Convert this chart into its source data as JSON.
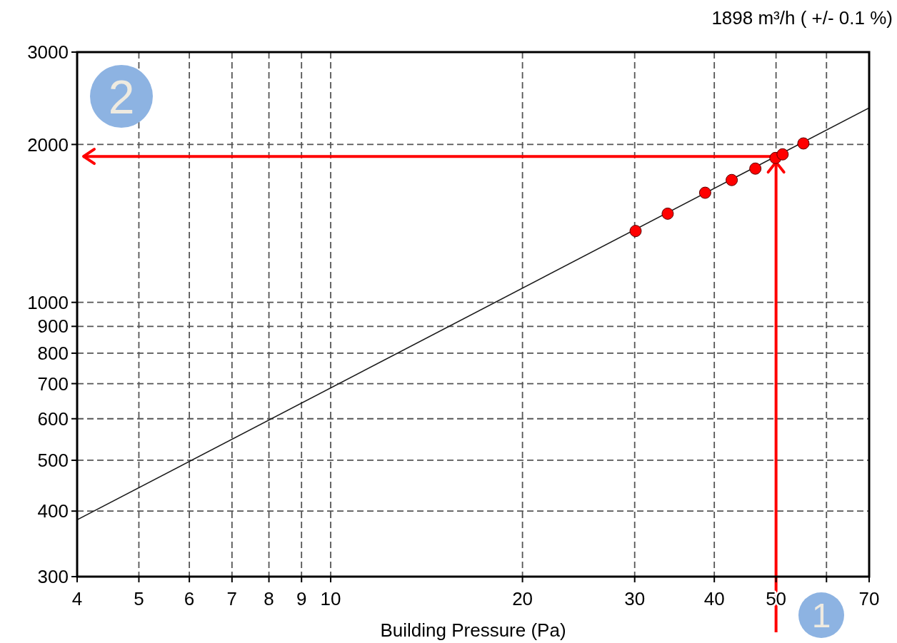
{
  "chart_data": {
    "type": "scatter",
    "xlabel": "Building Pressure (Pa)",
    "annotations": [
      "1898 m³/h ( +/- 0.1 %)",
      "1",
      "2"
    ],
    "log": "xy",
    "grid": true,
    "xlim": [
      4,
      70
    ],
    "xticks": [
      4,
      5,
      6,
      7,
      8,
      9,
      10,
      20,
      30,
      40,
      50,
      {
        "value": 60,
        "label": null
      },
      70
    ],
    "ylim": [
      300,
      3000
    ],
    "yticks": [
      300,
      400,
      500,
      600,
      700,
      800,
      900,
      1000,
      2000,
      3000
    ],
    "ref_lines": [
      {
        "axis": "x",
        "value": 50,
        "color": "#ff0000"
      },
      {
        "axis": "y",
        "value": 1898,
        "color": "#ff0000"
      }
    ],
    "series": [
      {
        "type": "line",
        "color": "#1a1a1a",
        "marker": "none",
        "x": [
          4,
          70
        ],
        "values": [
          385,
          2349
        ]
      },
      {
        "color": "#ff0000",
        "marker": "circle",
        "x": [
          30.1,
          33.8,
          38.7,
          42.6,
          46.4,
          49.9,
          51.2,
          55.2
        ],
        "values": [
          1368,
          1476,
          1618,
          1711,
          1799,
          1885,
          1915,
          2009
        ]
      }
    ]
  }
}
